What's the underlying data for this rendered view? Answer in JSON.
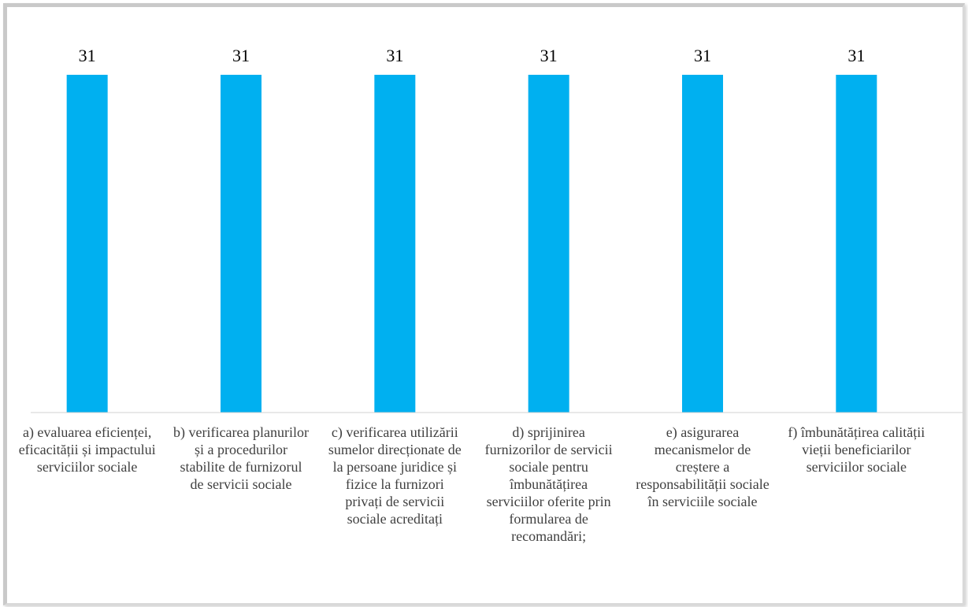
{
  "chart_data": {
    "type": "bar",
    "categories": [
      "a)  evaluarea eficienței, eficacității și impactului serviciilor sociale",
      "b)  verificarea planurilor și a procedurilor stabilite de furnizorul de servicii sociale",
      "c)  verificarea utilizării sumelor direcționate de la persoane juridice și fizice la furnizori privați de servicii sociale acreditați",
      "d)  sprijinirea furnizorilor de servicii sociale pentru îmbunătățirea serviciilor oferite prin formularea de recomandări;",
      "e)  asigurarea mecanismelor de creștere a responsabilității sociale în serviciile sociale",
      "f)  îmbunătățirea calității vieții beneficiarilor serviciilor sociale"
    ],
    "values": [
      31,
      31,
      31,
      31,
      31,
      31
    ],
    "value_labels": [
      "31",
      "31",
      "31",
      "31",
      "31",
      "31"
    ],
    "ylim": [
      0,
      31
    ],
    "grid": false,
    "colors": {
      "bar": "#00b0f0"
    }
  }
}
